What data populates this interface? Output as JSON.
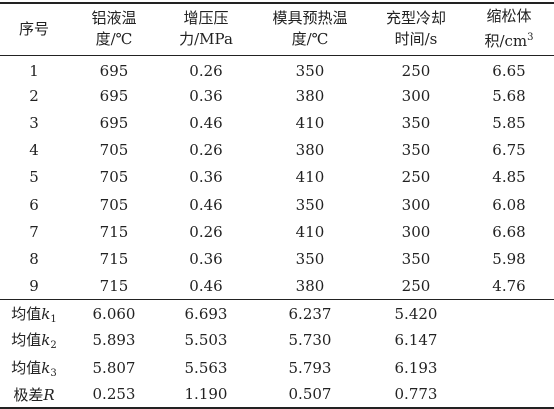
{
  "headers": [
    {
      "line1": "序号",
      "line2": ""
    },
    {
      "line1": "铝液温",
      "line2": "度/℃"
    },
    {
      "line1": "增压压",
      "line2": "力/MPa"
    },
    {
      "line1": "模具预热温",
      "line2": "度/℃"
    },
    {
      "line1": "充型冷却",
      "line2": "时间/s"
    },
    {
      "line1": "缩松体",
      "line2": "积/cm",
      "sup": "3"
    }
  ],
  "rows": [
    [
      "1",
      "695",
      "0.26",
      "350",
      "250",
      "6.65"
    ],
    [
      "2",
      "695",
      "0.36",
      "380",
      "300",
      "5.68"
    ],
    [
      "3",
      "695",
      "0.46",
      "410",
      "350",
      "5.85"
    ],
    [
      "4",
      "705",
      "0.26",
      "380",
      "350",
      "6.75"
    ],
    [
      "5",
      "705",
      "0.36",
      "410",
      "250",
      "4.85"
    ],
    [
      "6",
      "705",
      "0.46",
      "350",
      "300",
      "6.08"
    ],
    [
      "7",
      "715",
      "0.26",
      "410",
      "300",
      "6.68"
    ],
    [
      "8",
      "715",
      "0.36",
      "350",
      "350",
      "5.98"
    ],
    [
      "9",
      "715",
      "0.46",
      "380",
      "250",
      "4.76"
    ]
  ],
  "stats": [
    {
      "prefix": "均值",
      "var": "k",
      "sub": "1",
      "values": [
        "6.060",
        "6.693",
        "6.237",
        "5.420"
      ]
    },
    {
      "prefix": "均值",
      "var": "k",
      "sub": "2",
      "values": [
        "5.893",
        "5.503",
        "5.730",
        "6.147"
      ]
    },
    {
      "prefix": "均值",
      "var": "k",
      "sub": "3",
      "values": [
        "5.807",
        "5.563",
        "5.793",
        "6.193"
      ]
    },
    {
      "prefix": "极差",
      "var": "R",
      "sub": "",
      "values": [
        "0.253",
        "1.190",
        "0.507",
        "0.773"
      ]
    }
  ]
}
